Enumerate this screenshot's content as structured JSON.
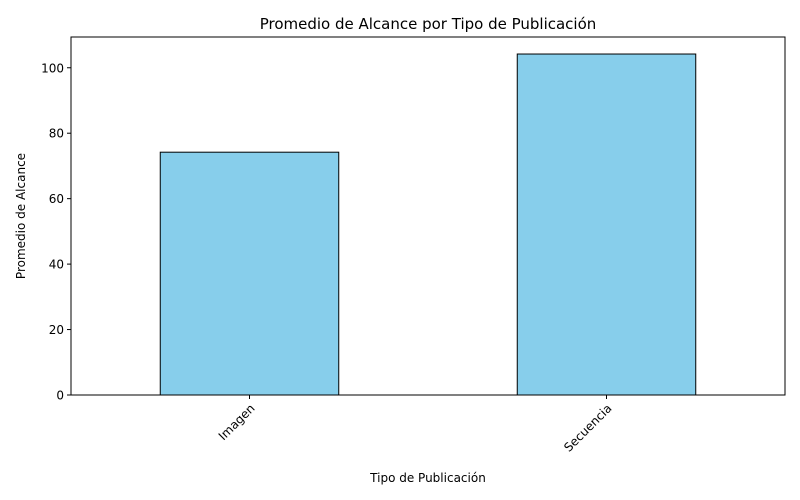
{
  "chart_data": {
    "type": "bar",
    "title": "Promedio de Alcance por Tipo de Publicación",
    "xlabel": "Tipo de Publicación",
    "ylabel": "Promedio de Alcance",
    "categories": [
      "Imagen",
      "Secuencia"
    ],
    "values": [
      74.2,
      104.2
    ],
    "ylim": [
      0,
      109.4
    ],
    "yticks": [
      0,
      20,
      40,
      60,
      80,
      100
    ],
    "grid": false,
    "legend": "none",
    "x_tick_rotation_deg": 45,
    "bar_color": "#87ceeb",
    "bar_edge_color": "#000000"
  }
}
